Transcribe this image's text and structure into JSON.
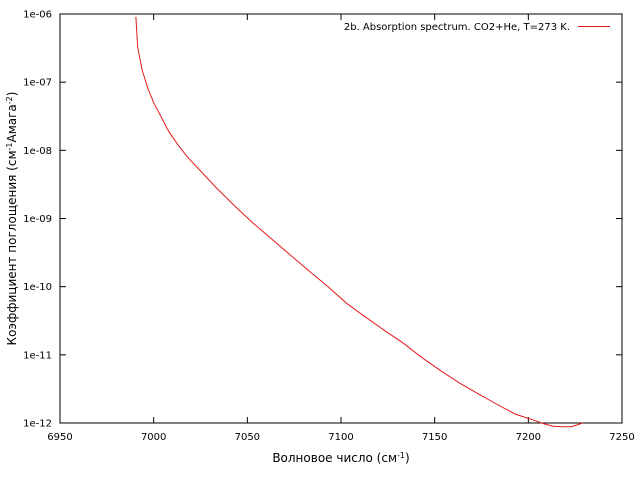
{
  "chart_data": {
    "type": "line",
    "xlabel_main": "Волновое число (см",
    "xlabel_sup": "-1",
    "xlabel_end": ")",
    "ylabel_main": "Коэффициент поглощения (см",
    "ylabel_sup1": "-1",
    "ylabel_mid": "Амага",
    "ylabel_sup2": "-2",
    "ylabel_end": ")",
    "xlim": [
      6950,
      7250
    ],
    "ylim": [
      1e-12,
      1e-06
    ],
    "y_scale": "log",
    "x_ticks": [
      6950,
      7000,
      7050,
      7100,
      7150,
      7200,
      7250
    ],
    "x_tick_labels": [
      "6950",
      "7000",
      "7050",
      "7100",
      "7150",
      "7200",
      "7250"
    ],
    "y_ticks": [
      1e-12,
      1e-11,
      1e-10,
      1e-09,
      1e-08,
      1e-07,
      1e-06
    ],
    "y_tick_labels": [
      "1e-12",
      "1e-11",
      "1e-10",
      "1e-09",
      "1e-08",
      "1e-07",
      "1e-06"
    ],
    "grid": false,
    "legend_position": "top-right",
    "series": [
      {
        "name": "2b. Absorption spectrum. CO2+He, T=273 K.",
        "color": "#e41a1c",
        "x": [
          6990.5,
          6991.5,
          6994,
          6997,
          7000,
          7004,
          7008,
          7013,
          7018,
          7025,
          7033,
          7043,
          7053,
          7063,
          7073,
          7083,
          7093,
          7103,
          7113,
          7123,
          7133,
          7143,
          7153,
          7163,
          7173,
          7183,
          7193,
          7203,
          7208,
          7213,
          7218,
          7223,
          7229
        ],
        "y": [
          9.1e-07,
          3.2e-07,
          1.45e-07,
          8e-08,
          5e-08,
          3.1e-08,
          1.9e-08,
          1.2e-08,
          8e-09,
          5e-09,
          2.9e-09,
          1.55e-09,
          8.6e-10,
          5e-10,
          2.9e-10,
          1.7e-10,
          1e-10,
          5.7e-11,
          3.6e-11,
          2.3e-11,
          1.5e-11,
          9.2e-12,
          5.9e-12,
          3.9e-12,
          2.7e-12,
          1.9e-12,
          1.35e-12,
          1.1e-12,
          9.8e-13,
          9e-13,
          8.8e-13,
          8.8e-13,
          1e-12
        ]
      }
    ]
  }
}
